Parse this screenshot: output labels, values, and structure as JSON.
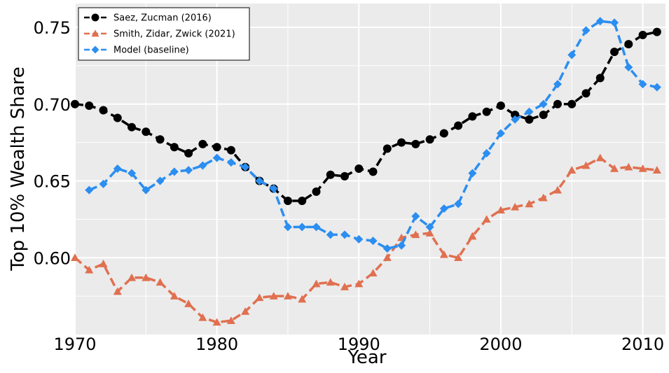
{
  "chart_data": {
    "type": "line",
    "x_label": "Year",
    "y_label": "Top 10% Wealth Share",
    "x": [
      1970,
      1971,
      1972,
      1973,
      1974,
      1975,
      1976,
      1977,
      1978,
      1979,
      1980,
      1981,
      1982,
      1983,
      1984,
      1985,
      1986,
      1987,
      1988,
      1989,
      1990,
      1991,
      1992,
      1993,
      1994,
      1995,
      1996,
      1997,
      1998,
      1999,
      2000,
      2001,
      2002,
      2003,
      2004,
      2005,
      2006,
      2007,
      2008,
      2009,
      2010,
      2011
    ],
    "series": [
      {
        "name": "Saez, Zucman (2016)",
        "color": "#000000",
        "marker": "circle",
        "values": [
          0.7,
          0.699,
          0.696,
          0.691,
          0.685,
          0.682,
          0.677,
          0.672,
          0.668,
          0.674,
          0.672,
          0.67,
          0.659,
          0.65,
          0.645,
          0.637,
          0.637,
          0.643,
          0.654,
          0.653,
          0.658,
          0.656,
          0.671,
          0.675,
          0.674,
          0.677,
          0.681,
          0.686,
          0.692,
          0.695,
          0.699,
          0.693,
          0.69,
          0.693,
          0.7,
          0.7,
          0.707,
          0.717,
          0.734,
          0.739,
          0.745,
          0.747
        ]
      },
      {
        "name": "Smith, Zidar, Zwick (2021)",
        "color": "#e07050",
        "marker": "triangle",
        "values": [
          0.6,
          0.592,
          0.596,
          0.578,
          0.587,
          0.587,
          0.584,
          0.575,
          0.57,
          0.561,
          0.558,
          0.559,
          0.565,
          0.574,
          0.575,
          0.575,
          0.573,
          0.583,
          0.584,
          0.581,
          0.583,
          0.59,
          0.6,
          0.613,
          0.615,
          0.616,
          0.602,
          0.6,
          0.614,
          0.625,
          0.631,
          0.633,
          0.635,
          0.639,
          0.644,
          0.657,
          0.66,
          0.665,
          0.658,
          0.659,
          0.658,
          0.657
        ]
      },
      {
        "name": "Model (baseline)",
        "color": "#2b8ef0",
        "marker": "diamond",
        "values": [
          null,
          0.644,
          0.648,
          0.658,
          0.655,
          0.644,
          0.65,
          0.656,
          0.657,
          0.66,
          0.665,
          0.662,
          0.659,
          0.65,
          0.645,
          0.62,
          0.62,
          0.62,
          0.615,
          0.615,
          0.612,
          0.611,
          0.606,
          0.608,
          0.627,
          0.62,
          0.632,
          0.635,
          0.655,
          0.668,
          0.681,
          0.69,
          0.695,
          0.7,
          0.713,
          0.732,
          0.748,
          0.754,
          0.753,
          0.724,
          0.713,
          0.711
        ]
      }
    ],
    "xlim": [
      1970,
      2011.6
    ],
    "ylim": [
      0.55,
      0.7655
    ],
    "xticks": [
      1970,
      1980,
      1990,
      2000,
      2010
    ],
    "yticks": [
      {
        "value": 0.6,
        "label": "0.60"
      },
      {
        "value": 0.65,
        "label": "0.65"
      },
      {
        "value": 0.7,
        "label": "0.70"
      },
      {
        "value": 0.75,
        "label": "0.75"
      }
    ],
    "xminorticks": [
      1975,
      1985,
      1995,
      2005
    ],
    "yminorticks": [
      0.575,
      0.625,
      0.675,
      0.725
    ],
    "grid": true,
    "legend": "upper left",
    "background": "#ebebeb"
  }
}
